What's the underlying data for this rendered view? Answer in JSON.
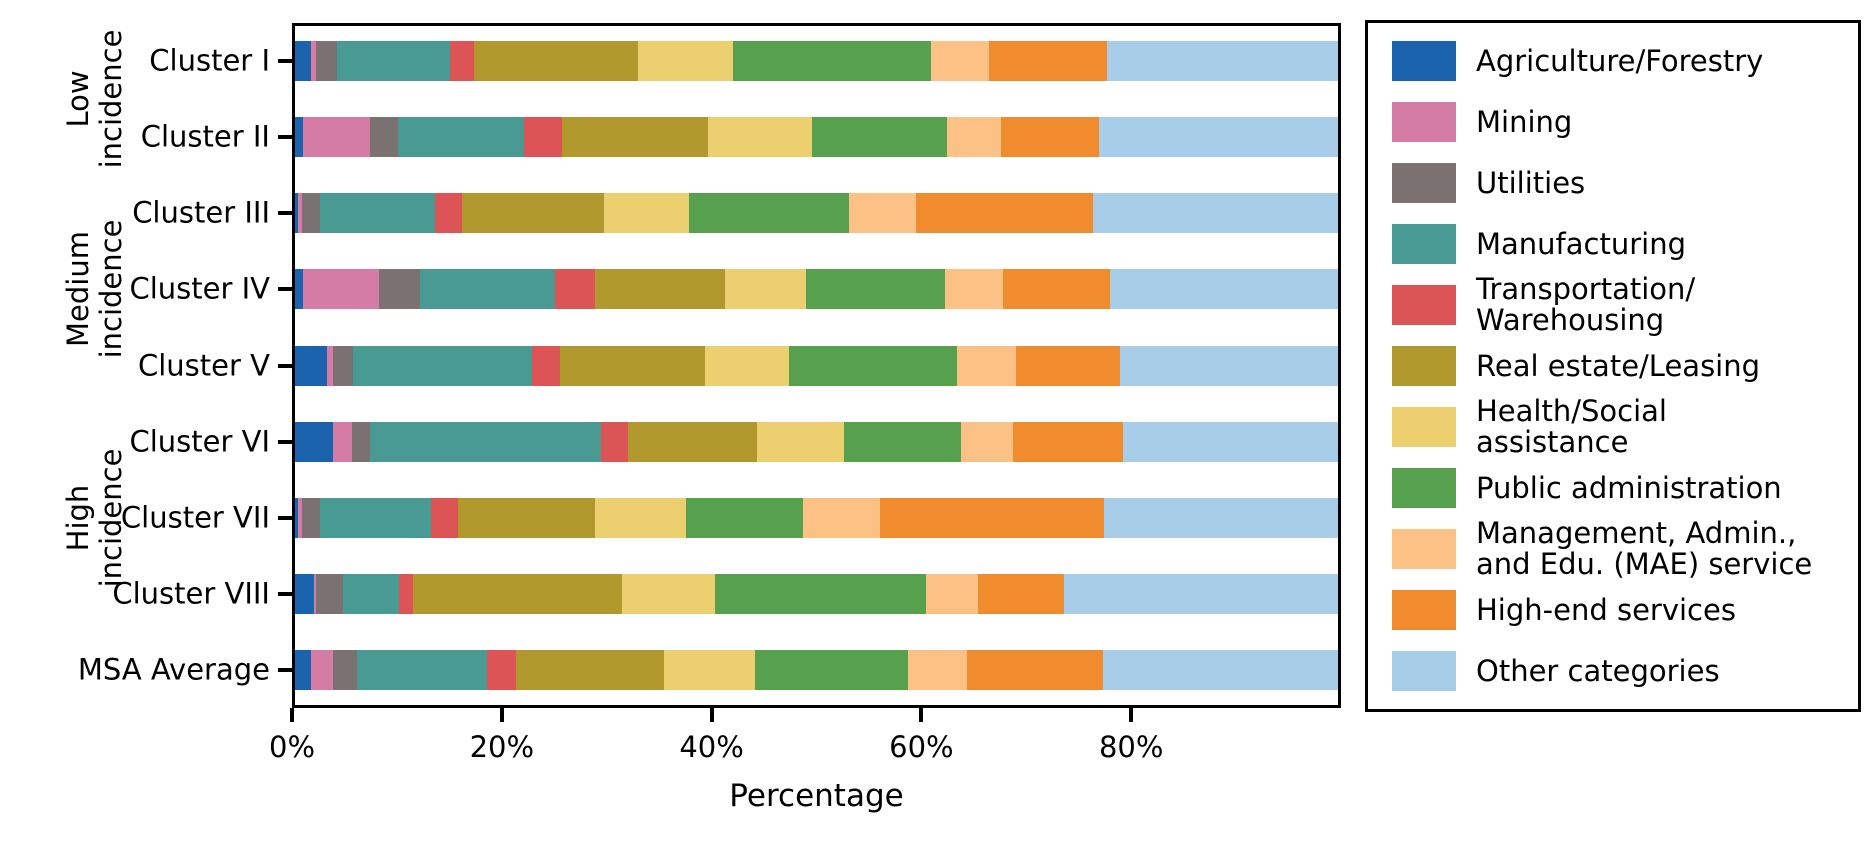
{
  "chart_data": {
    "type": "bar",
    "orientation": "horizontal",
    "stacked": true,
    "title": "",
    "xlabel": "Percentage",
    "xlim": [
      0,
      100
    ],
    "x_ticks": [
      {
        "value": 0,
        "label": "0%"
      },
      {
        "value": 20,
        "label": "20%"
      },
      {
        "value": 40,
        "label": "40%"
      },
      {
        "value": 60,
        "label": "60%"
      },
      {
        "value": 80,
        "label": "80%"
      }
    ],
    "grid": false,
    "legend_position": "right-outside",
    "categories": [
      "Cluster I",
      "Cluster II",
      "Cluster III",
      "Cluster IV",
      "Cluster V",
      "Cluster VI",
      "Cluster VII",
      "Cluster VIII",
      "MSA Average"
    ],
    "row_groups": [
      {
        "label": "Low\nincidence",
        "first_row": 0,
        "last_row": 1
      },
      {
        "label": "Medium\nincidence",
        "first_row": 2,
        "last_row": 4
      },
      {
        "label": "High\nincidence",
        "first_row": 5,
        "last_row": 7
      }
    ],
    "series": [
      {
        "name": "Agriculture/Forestry",
        "legend_label": "Agriculture/Forestry",
        "color": "#1b63ad",
        "values": [
          1.5,
          0.8,
          0.3,
          0.8,
          3.1,
          3.6,
          0.3,
          1.8,
          1.5
        ]
      },
      {
        "name": "Mining",
        "legend_label": "Mining",
        "color": "#d57ca6",
        "values": [
          0.5,
          6.4,
          0.4,
          7.3,
          0.5,
          1.9,
          0.4,
          0.2,
          2.1
        ]
      },
      {
        "name": "Utilities",
        "legend_label": "Utilities",
        "color": "#7b7170",
        "values": [
          2.0,
          2.7,
          1.7,
          3.9,
          2.0,
          1.7,
          1.7,
          2.6,
          2.3
        ]
      },
      {
        "name": "Manufacturing",
        "legend_label": "Manufacturing",
        "color": "#489a93",
        "values": [
          10.9,
          12.1,
          11.0,
          12.9,
          17.1,
          22.1,
          10.6,
          5.4,
          12.5
        ]
      },
      {
        "name": "Transportation/Warehousing",
        "legend_label": "Transportation/\nWarehousing",
        "color": "#dd5456",
        "values": [
          2.3,
          3.6,
          2.6,
          3.9,
          2.7,
          2.6,
          2.6,
          1.3,
          2.8
        ]
      },
      {
        "name": "Real estate/Leasing",
        "legend_label": "Real estate/Leasing",
        "color": "#b2992e",
        "values": [
          15.7,
          14.0,
          13.6,
          12.4,
          13.9,
          12.4,
          13.2,
          20.1,
          14.2
        ]
      },
      {
        "name": "Health/Social assistance",
        "legend_label": "Health/Social\nassistance",
        "color": "#eccf6e",
        "values": [
          9.1,
          10.0,
          8.2,
          7.8,
          8.1,
          8.3,
          8.7,
          8.9,
          8.7
        ]
      },
      {
        "name": "Public administration",
        "legend_label": "Public administration",
        "color": "#57a04e",
        "values": [
          19.0,
          12.9,
          15.3,
          13.3,
          16.1,
          11.3,
          11.2,
          20.2,
          14.7
        ]
      },
      {
        "name": "Management, Admin., and Edu. (MAE) service",
        "legend_label": "Management, Admin.,\nand Edu. (MAE) service",
        "color": "#fcc184",
        "values": [
          5.5,
          5.2,
          6.4,
          5.6,
          5.6,
          4.9,
          7.4,
          5.0,
          5.6
        ]
      },
      {
        "name": "High-end services",
        "legend_label": "High-end services",
        "color": "#f08c2d",
        "values": [
          11.4,
          9.4,
          17.0,
          10.2,
          10.0,
          10.6,
          21.5,
          8.2,
          13.1
        ]
      },
      {
        "name": "Other categories",
        "legend_label": "Other categories",
        "color": "#a7cde8",
        "values": [
          22.1,
          22.9,
          23.5,
          21.9,
          20.9,
          20.6,
          22.4,
          26.3,
          22.5
        ]
      }
    ]
  }
}
